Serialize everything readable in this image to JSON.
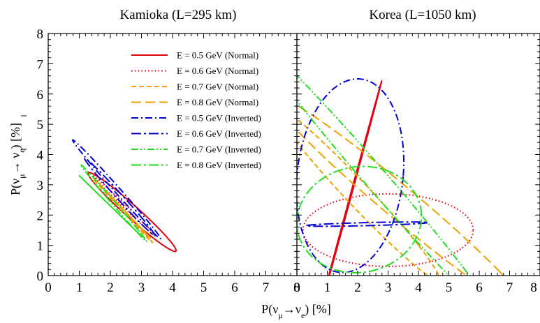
{
  "chart_data": {
    "type": "line",
    "colors": {
      "red": "#e3000f",
      "orange": "#f0a000",
      "blue": "#0000d4",
      "green": "#22dd22"
    },
    "xlabel_parts": {
      "main": "P(ν",
      "sub1": "μ",
      "arrow": "→ν",
      "sub2": "e",
      "tail": ") [%]"
    },
    "ylabel_parts": {
      "main": "P(ν",
      "sub1": "μ",
      "arrow": "→ ν",
      "sub2": "e",
      "tail": ") [%]"
    },
    "panels": [
      {
        "title": "Kamioka (L=295 km)",
        "xlim": [
          0,
          8
        ],
        "ylim": [
          0,
          8
        ],
        "xticks": [
          "0",
          "1",
          "2",
          "3",
          "4",
          "5",
          "6",
          "7",
          "8"
        ],
        "yticks": [
          "0",
          "1",
          "2",
          "3",
          "4",
          "5",
          "6",
          "7",
          "8"
        ],
        "series": [
          {
            "name": "E = 0.5 GeV (Normal)",
            "color": "red",
            "dash": "solid",
            "center": [
              2.7,
              2.1
            ],
            "extreme_x": [
              3.7,
              1.4
            ],
            "extreme_y": [
              1.7,
              3.2
            ],
            "min_y": [
              3.7,
              1.4
            ]
          },
          {
            "name": "E = 0.6 GeV (Normal)",
            "color": "red",
            "dash": "dotted",
            "center": [
              2.45,
              2.3
            ],
            "extreme_x": [
              3.2,
              1.6
            ],
            "extreme_y": [
              1.8,
              3.0
            ],
            "min_y": [
              3.2,
              1.6
            ]
          },
          {
            "name": "E = 0.7 GeV (Normal)",
            "color": "orange",
            "dash": "dashed",
            "center": [
              2.4,
              2.15
            ],
            "extreme_x": [
              3.1,
              1.4
            ],
            "extreme_y": [
              1.75,
              2.9
            ],
            "min_y": [
              3.1,
              1.4
            ]
          },
          {
            "name": "E = 0.8 GeV (Normal)",
            "color": "orange",
            "dash": "longdash",
            "center": [
              2.45,
              2.15
            ],
            "extreme_x": [
              3.05,
              1.5
            ],
            "extreme_y": [
              1.85,
              2.8
            ],
            "min_y": [
              3.05,
              1.5
            ]
          },
          {
            "name": "E = 0.5 GeV (Inverted)",
            "color": "blue",
            "dash": "dashdot",
            "center": [
              2.2,
              2.85
            ],
            "extreme_x": [
              3.2,
              1.6
            ],
            "extreme_y": [
              1.2,
              3.9
            ],
            "min_y": [
              3.2,
              1.6
            ]
          },
          {
            "name": "E = 0.6 GeV (Inverted)",
            "color": "blue",
            "dash": "dashdotlong",
            "center": [
              2.3,
              2.6
            ],
            "extreme_x": [
              3.1,
              1.8
            ],
            "extreme_y": [
              1.5,
              3.6
            ],
            "min_y": [
              3.1,
              1.8
            ]
          },
          {
            "name": "E = 0.7 GeV (Inverted)",
            "color": "green",
            "dash": "dashdotdot",
            "center": [
              2.1,
              2.4
            ],
            "extreme_x": [
              2.9,
              1.5
            ],
            "extreme_y": [
              1.4,
              3.3
            ],
            "min_y": [
              2.9,
              1.5
            ]
          },
          {
            "name": "E = 0.8 GeV (Inverted)",
            "color": "green",
            "dash": "dashdotlong",
            "center": [
              2.05,
              2.25
            ],
            "extreme_x": [
              2.8,
              1.5
            ],
            "extreme_y": [
              1.3,
              3.0
            ],
            "min_y": [
              2.8,
              1.5
            ]
          }
        ]
      },
      {
        "title": "Korea (L=1050 km)",
        "xlim": [
          0,
          8
        ],
        "ylim": [
          0,
          8
        ],
        "xticks": [
          "0",
          "1",
          "2",
          "3",
          "4",
          "5",
          "6",
          "7",
          "8"
        ],
        "yticks": [
          "0",
          "1",
          "2",
          "3",
          "4",
          "5",
          "6",
          "7",
          "8"
        ],
        "series": [
          {
            "name": "E = 0.5 GeV (Normal)",
            "color": "red",
            "dash": "solid",
            "center": [
              1.8,
              2.75
            ],
            "extreme_x": [
              2.5,
              5.3
            ],
            "extreme_y": [
              1.1,
              0.1
            ],
            "min_y": [
              2.5,
              0.1
            ]
          },
          {
            "name": "E = 0.6 GeV (Normal)",
            "color": "red",
            "dash": "dotted",
            "center": [
              3.0,
              1.5
            ],
            "extreme_x": [
              5.8,
              1.5
            ],
            "extreme_y": [
              3.0,
              2.7
            ],
            "min_y": [
              5.8,
              1.5
            ]
          },
          {
            "name": "E = 0.7 GeV (Normal)",
            "color": "orange",
            "dash": "dashed",
            "center": [
              2.0,
              2.7
            ],
            "extreme_x": [
              4.0,
              1.0
            ],
            "extreme_y": [
              0.2,
              5.0
            ],
            "min_y": [
              4.0,
              1.0
            ]
          },
          {
            "name": "E = 0.8 GeV (Normal)",
            "color": "orange",
            "dash": "longdash",
            "center": [
              3.4,
              2.4
            ],
            "extreme_x": [
              6.7,
              0.1
            ],
            "extreme_y": [
              0.8,
              5.1
            ],
            "min_y": [
              6.7,
              0.1
            ]
          },
          {
            "name": "E = 0.5 GeV (Inverted)",
            "color": "blue",
            "dash": "dashdot",
            "center": [
              1.75,
              3.3
            ],
            "extreme_x": [
              3.5,
              3.3
            ],
            "extreme_y": [
              2.0,
              6.5
            ],
            "min_y": [
              3.5,
              3.3
            ]
          },
          {
            "name": "E = 0.6 GeV (Inverted)",
            "color": "blue",
            "dash": "dashdotlong",
            "center": [
              2.3,
              1.7
            ],
            "extreme_x": [
              4.3,
              1.75
            ],
            "extreme_y": [
              2.3,
              1.65
            ],
            "min_y": [
              4.3,
              1.75
            ]
          },
          {
            "name": "E = 0.7 GeV (Inverted)",
            "color": "green",
            "dash": "dashdotdot",
            "center": [
              2.6,
              3.2
            ],
            "extreme_x": [
              5.6,
              0.1
            ],
            "extreme_y": [
              0.2,
              6.4
            ],
            "min_y": [
              5.6,
              0.1
            ]
          },
          {
            "name": "E = 0.8 GeV (Inverted)",
            "color": "green",
            "dash": "dashdotlong",
            "center": [
              2.05,
              1.85
            ],
            "extreme_x": [
              4.1,
              2.0
            ],
            "extreme_y": [
              2.0,
              3.6
            ],
            "min_y": [
              4.1,
              2.0
            ]
          }
        ]
      }
    ]
  }
}
